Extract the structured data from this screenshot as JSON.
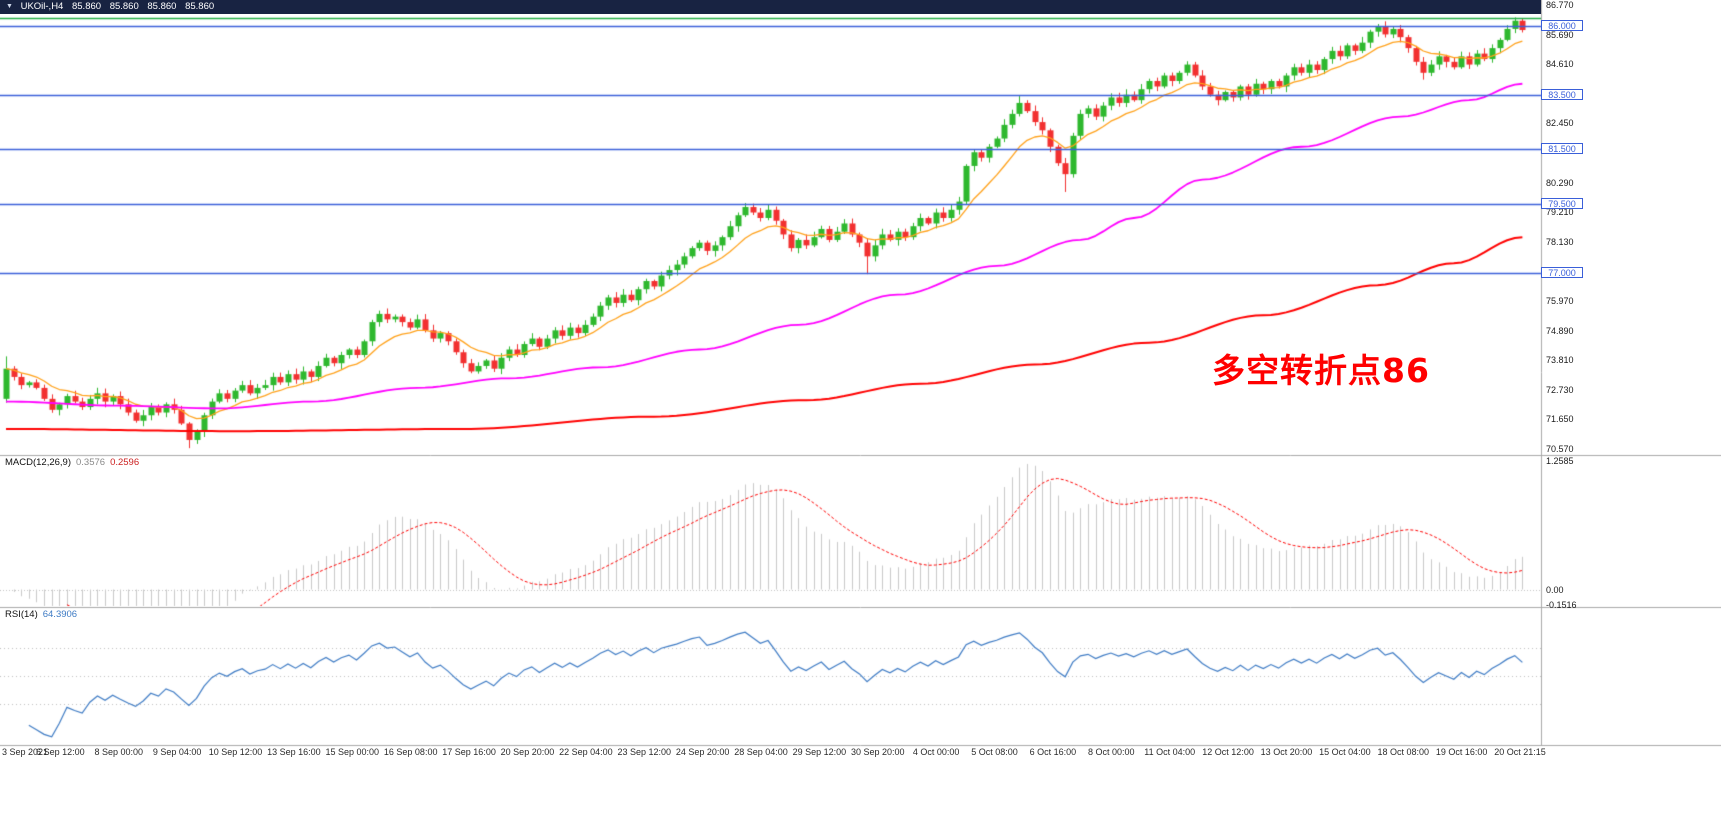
{
  "title_bar": {
    "symbol": "UKOil-,H4",
    "ohlc": [
      "85.860",
      "85.860",
      "85.860",
      "85.860"
    ]
  },
  "icons": {
    "dropdown": "▼"
  },
  "annotation": {
    "text": "多空转折点86",
    "color": "#ff0000"
  },
  "price_axis": {
    "labels": [
      "86.770",
      "85.690",
      "84.610",
      "82.450",
      "80.290",
      "79.210",
      "78.130",
      "75.970",
      "74.890",
      "73.810",
      "72.730",
      "71.650",
      "70.570"
    ]
  },
  "time_axis": {
    "labels": [
      "3 Sep 2021",
      "6 Sep 12:00",
      "8 Sep 00:00",
      "9 Sep 04:00",
      "10 Sep 12:00",
      "13 Sep 16:00",
      "15 Sep 00:00",
      "16 Sep 08:00",
      "17 Sep 16:00",
      "20 Sep 20:00",
      "22 Sep 04:00",
      "23 Sep 12:00",
      "24 Sep 20:00",
      "28 Sep 04:00",
      "29 Sep 12:00",
      "30 Sep 20:00",
      "4 Oct 00:00",
      "5 Oct 08:00",
      "6 Oct 16:00",
      "8 Oct 00:00",
      "11 Oct 04:00",
      "12 Oct 12:00",
      "13 Oct 20:00",
      "15 Oct 04:00",
      "18 Oct 08:00",
      "19 Oct 16:00",
      "20 Oct 21:15"
    ]
  },
  "panels": {
    "macd": {
      "name": "MACD(12,26,9)",
      "value_main": "0.3576",
      "value_signal": "0.2596",
      "axis": [
        "1.2585",
        "0.00",
        "-0.1516"
      ]
    },
    "rsi": {
      "name": "RSI(14)",
      "value": "64.3906"
    }
  },
  "colors": {
    "up": "#2eb82e",
    "down": "#f23030",
    "hline_blue": "#3a5fd9",
    "hline_green": "#22ae46",
    "ma_fast": "#ffa11a",
    "ma_mid": "#ff00ff",
    "ma_slow": "#ff0000",
    "macd_hist": "#c9c9c9",
    "macd_signal": "#ff0000",
    "rsi_line": "#3e7bc4",
    "separator": "#a8a8a8"
  },
  "chart_data": {
    "type": "candlestick",
    "symbol": "UKOil-",
    "timeframe": "H4",
    "title": "UKOil-,H4 85.860 85.860 85.860 85.860",
    "visible_price_range": [
      70.57,
      86.77
    ],
    "first_open": 72.4,
    "closes": [
      73.5,
      73.2,
      72.9,
      73.0,
      72.8,
      72.4,
      72.0,
      72.2,
      72.5,
      72.3,
      72.1,
      72.4,
      72.6,
      72.3,
      72.5,
      72.2,
      71.9,
      71.6,
      71.8,
      72.1,
      71.9,
      72.2,
      72.0,
      71.5,
      70.9,
      71.2,
      71.8,
      72.3,
      72.6,
      72.4,
      72.7,
      72.9,
      72.6,
      72.8,
      72.9,
      73.2,
      73.0,
      73.3,
      73.1,
      73.4,
      73.2,
      73.6,
      73.9,
      73.7,
      74.0,
      74.2,
      74.0,
      74.5,
      75.2,
      75.5,
      75.3,
      75.4,
      75.2,
      75.0,
      75.3,
      74.9,
      74.6,
      74.8,
      74.5,
      74.1,
      73.7,
      73.4,
      73.6,
      73.8,
      73.5,
      73.9,
      74.2,
      74.0,
      74.4,
      74.6,
      74.3,
      74.6,
      74.9,
      74.7,
      75.0,
      74.8,
      75.1,
      75.4,
      75.8,
      76.1,
      75.9,
      76.2,
      76.0,
      76.4,
      76.7,
      76.5,
      76.9,
      77.1,
      77.3,
      77.6,
      77.9,
      78.1,
      77.8,
      78.0,
      78.3,
      78.7,
      79.1,
      79.4,
      79.2,
      79.0,
      79.3,
      78.9,
      78.4,
      77.9,
      78.2,
      78.0,
      78.3,
      78.6,
      78.2,
      78.5,
      78.8,
      78.4,
      78.1,
      77.6,
      78.0,
      78.4,
      78.2,
      78.5,
      78.3,
      78.7,
      79.0,
      78.8,
      79.2,
      79.0,
      79.3,
      79.6,
      80.9,
      81.4,
      81.2,
      81.6,
      81.9,
      82.4,
      82.8,
      83.2,
      82.9,
      82.5,
      82.2,
      81.6,
      81.0,
      80.6,
      82.0,
      82.8,
      83.0,
      82.7,
      83.1,
      83.4,
      83.2,
      83.5,
      83.3,
      83.7,
      84.0,
      83.8,
      84.2,
      84.0,
      84.3,
      84.6,
      84.2,
      83.8,
      83.5,
      83.3,
      83.6,
      83.4,
      83.8,
      83.5,
      83.9,
      83.7,
      84.0,
      83.8,
      84.2,
      84.5,
      84.3,
      84.6,
      84.4,
      84.8,
      85.1,
      84.9,
      85.3,
      85.1,
      85.4,
      85.8,
      86.0,
      85.7,
      85.9,
      85.6,
      85.2,
      84.7,
      84.3,
      84.6,
      84.9,
      84.7,
      84.5,
      84.9,
      84.6,
      85.0,
      84.8,
      85.2,
      85.5,
      85.9,
      86.2,
      85.86
    ],
    "wick_overrides": [
      {
        "i": 0,
        "high": 73.95
      },
      {
        "i": 24,
        "low": 70.6
      },
      {
        "i": 49,
        "high": 75.62
      },
      {
        "i": 113,
        "low": 76.95
      },
      {
        "i": 133,
        "high": 83.45
      },
      {
        "i": 139,
        "low": 79.95
      },
      {
        "i": 155,
        "high": 84.72
      },
      {
        "i": 180,
        "high": 86.08
      },
      {
        "i": 186,
        "low": 84.05
      },
      {
        "i": 198,
        "high": 86.32
      }
    ],
    "hlines": [
      {
        "price": 86.3,
        "color": "#22ae46"
      },
      {
        "price": 86.0,
        "color": "#3a5fd9",
        "tag": "86.000"
      },
      {
        "price": 83.5,
        "color": "#3a5fd9",
        "tag": "83.500"
      },
      {
        "price": 81.5,
        "color": "#3a5fd9",
        "tag": "81.500"
      },
      {
        "price": 79.5,
        "color": "#3a5fd9",
        "tag": "79.500"
      },
      {
        "price": 77.0,
        "color": "#3a5fd9",
        "tag": "77.000"
      }
    ],
    "ma_fast": {
      "period": 10
    },
    "ma_mid": {
      "points": [
        [
          0,
          72.3
        ],
        [
          15,
          72.15
        ],
        [
          28,
          72.05
        ],
        [
          40,
          72.3
        ],
        [
          54,
          72.8
        ],
        [
          66,
          73.15
        ],
        [
          78,
          73.55
        ],
        [
          91,
          74.2
        ],
        [
          104,
          75.1
        ],
        [
          117,
          76.2
        ],
        [
          130,
          77.25
        ],
        [
          141,
          78.2
        ],
        [
          148,
          79.0
        ],
        [
          157,
          80.4
        ],
        [
          170,
          81.6
        ],
        [
          183,
          82.7
        ],
        [
          192,
          83.3
        ],
        [
          199,
          83.9
        ]
      ]
    },
    "ma_slow": {
      "points": [
        [
          0,
          71.3
        ],
        [
          30,
          71.22
        ],
        [
          60,
          71.3
        ],
        [
          85,
          71.75
        ],
        [
          105,
          72.35
        ],
        [
          120,
          72.95
        ],
        [
          135,
          73.65
        ],
        [
          150,
          74.45
        ],
        [
          165,
          75.45
        ],
        [
          180,
          76.55
        ],
        [
          190,
          77.35
        ],
        [
          199,
          78.3
        ]
      ]
    },
    "macd": {
      "fast": 12,
      "slow": 26,
      "signal": 9,
      "axis_max": 1.2585,
      "axis_min": -0.1516,
      "main": 0.3576,
      "signal_value": 0.2596
    },
    "rsi": {
      "period": 14,
      "levels": [
        30,
        50,
        70
      ],
      "value": 64.3906
    }
  }
}
